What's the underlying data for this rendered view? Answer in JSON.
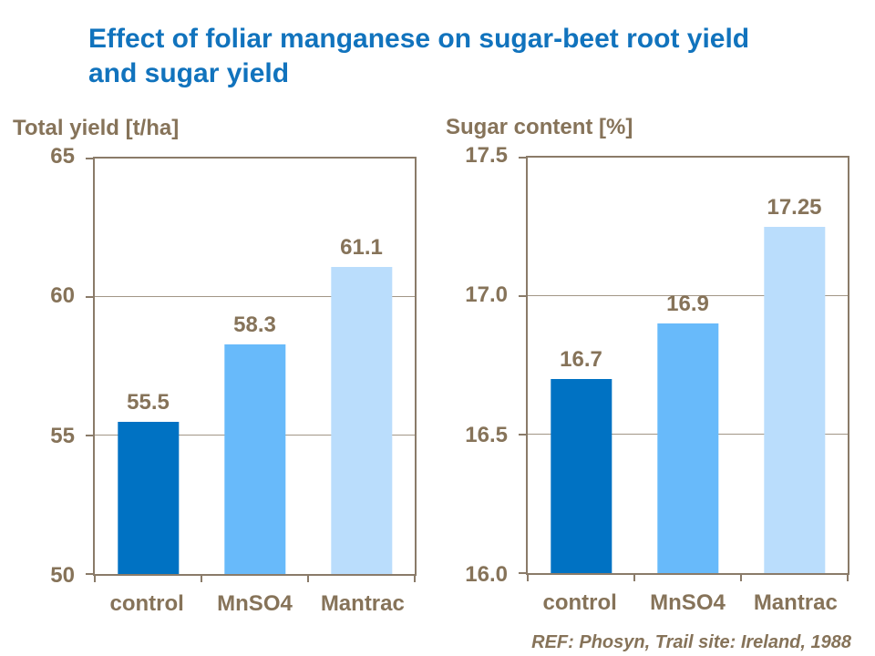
{
  "slide": {
    "title": "Effect of foliar manganese on sugar-beet root yield\nand sugar yield",
    "reference": "REF: Phosyn, Trail site: Ireland, 1988"
  },
  "colors": {
    "title_blue": "#1173BD",
    "text_brown": "#867359",
    "axis_line": "#8A7B69",
    "gridline": "#A29686",
    "bar_control": "#0072C3",
    "bar_mnso4": "#68BAFA",
    "bar_mantrac": "#BADDFC"
  },
  "chart_data": [
    {
      "type": "bar",
      "title": "Total yield [t/ha]",
      "categories": [
        "control",
        "MnSO4",
        "Mantrac"
      ],
      "values": [
        55.5,
        58.3,
        61.1
      ],
      "value_labels": [
        "55.5",
        "58.3",
        "61.1"
      ],
      "ylim": [
        50,
        65
      ],
      "yticks": [
        "65",
        "60",
        "55",
        "50"
      ],
      "bar_colors": [
        "#0072C3",
        "#68BAFA",
        "#BADDFC"
      ],
      "xlabel": "",
      "ylabel": "Total yield [t/ha]",
      "grid": "horizontal",
      "legend": "none"
    },
    {
      "type": "bar",
      "title": "Sugar content [%]",
      "categories": [
        "control",
        "MnSO4",
        "Mantrac"
      ],
      "values": [
        16.7,
        16.9,
        17.25
      ],
      "value_labels": [
        "16.7",
        "16.9",
        "17.25"
      ],
      "ylim": [
        16.0,
        17.5
      ],
      "yticks": [
        "17.5",
        "17.0",
        "16.5",
        "16.0"
      ],
      "bar_colors": [
        "#0072C3",
        "#68BAFA",
        "#BADDFC"
      ],
      "xlabel": "",
      "ylabel": "Sugar content [%]",
      "grid": "horizontal",
      "legend": "none"
    }
  ]
}
